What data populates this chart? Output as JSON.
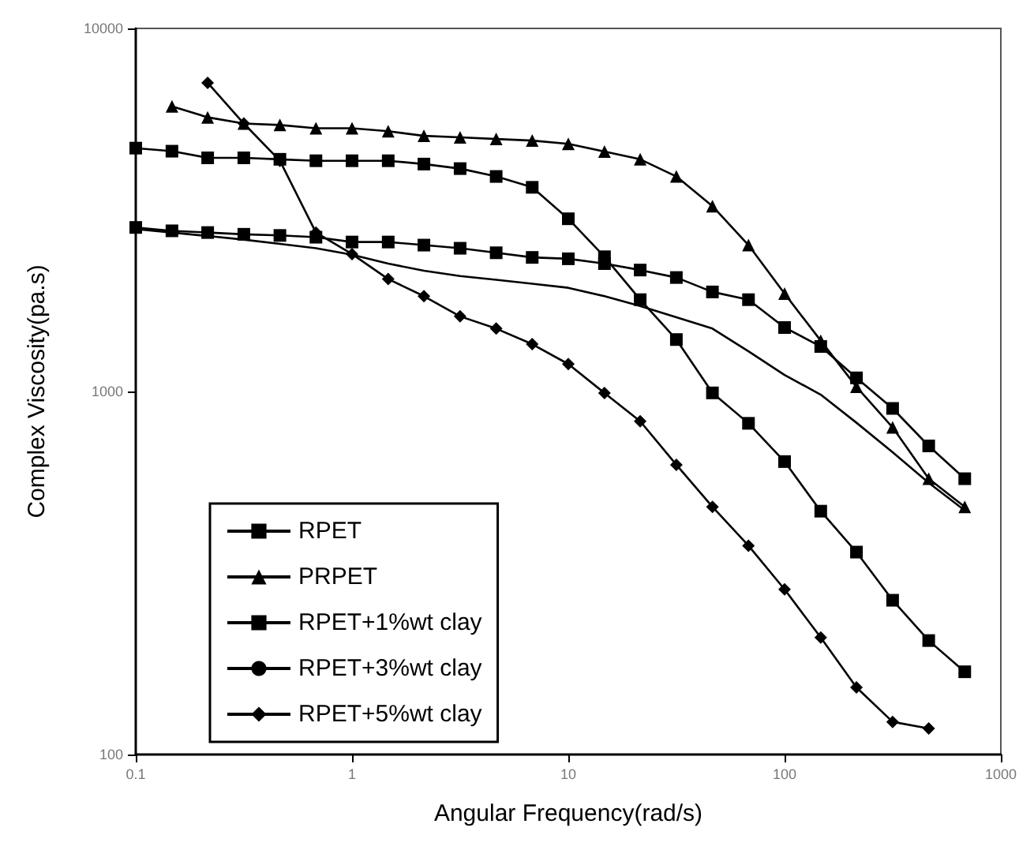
{
  "chart_data": {
    "type": "line",
    "xlabel": "Angular Frequency(rad/s)",
    "ylabel": "Complex Viscosity(pa.s)",
    "log": "xy",
    "xlim": [
      0.1,
      1000
    ],
    "xticks": [
      0.1,
      1,
      10,
      100,
      1000
    ],
    "ylim": [
      100,
      10000
    ],
    "yticks": [
      100,
      1000,
      10000
    ],
    "grid": false,
    "legend": "bottom left",
    "line_style": "solid",
    "x": [
      0.1,
      0.147,
      0.215,
      0.316,
      0.464,
      0.681,
      1,
      1.47,
      2.15,
      3.16,
      4.64,
      6.81,
      10,
      14.7,
      21.5,
      31.6,
      46.4,
      68.1,
      100,
      147,
      215,
      316,
      464,
      681
    ],
    "series": [
      {
        "name": "RPET",
        "color": "#000000",
        "marker": "square",
        "values": [
          4680,
          4590,
          4400,
          4400,
          4360,
          4320,
          4320,
          4320,
          4230,
          4110,
          3910,
          3650,
          2990,
          2350,
          1790,
          1390,
          991,
          817,
          641,
          468,
          361,
          266,
          206,
          169
        ]
      },
      {
        "name": "PRPET",
        "color": "#000000",
        "marker": "triangle",
        "values": [
          null,
          6100,
          5690,
          5470,
          5420,
          5310,
          5310,
          5210,
          5060,
          5010,
          4960,
          4910,
          4810,
          4580,
          4360,
          3910,
          3240,
          2530,
          1860,
          1380,
          1030,
          796,
          575,
          481
        ]
      },
      {
        "name": "RPET+1%wt clay",
        "color": "#000000",
        "marker": "square",
        "values": [
          2830,
          2770,
          2740,
          2710,
          2690,
          2660,
          2580,
          2580,
          2530,
          2480,
          2410,
          2340,
          2320,
          2250,
          2160,
          2060,
          1880,
          1790,
          1500,
          1330,
          1090,
          898,
          708,
          575
        ]
      },
      {
        "name": "RPET+3%wt clay",
        "color": "#000000",
        "marker": "none",
        "values": [
          2800,
          2740,
          2680,
          2620,
          2550,
          2480,
          2380,
          2250,
          2150,
          2080,
          2030,
          1980,
          1930,
          1830,
          1720,
          1600,
          1490,
          1290,
          1110,
          980,
          820,
          680,
          560,
          470
        ]
      },
      {
        "name": "RPET+5%wt clay",
        "color": "#000000",
        "marker": "diamond",
        "values": [
          null,
          null,
          7080,
          5470,
          4320,
          2740,
          2390,
          2040,
          1830,
          1610,
          1490,
          1350,
          1190,
          990,
          828,
          628,
          481,
          376,
          285,
          210,
          153,
          123,
          118,
          null
        ]
      }
    ]
  }
}
